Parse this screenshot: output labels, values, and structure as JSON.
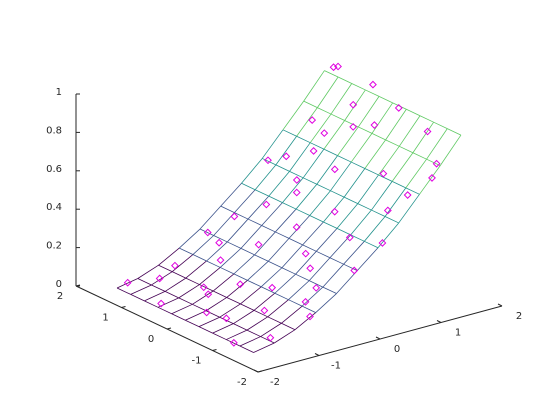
{
  "chart_data": {
    "type": "surface3d",
    "xlim": [
      -2,
      2
    ],
    "ylim": [
      -2,
      2
    ],
    "zlim": [
      0,
      1
    ],
    "xticks": [
      -2,
      -1,
      0,
      1,
      2
    ],
    "yticks": [
      -2,
      -1,
      0,
      1,
      2
    ],
    "zticks": [
      0,
      0.2,
      0.4,
      0.6,
      0.8,
      1
    ],
    "colormap": [
      "#440154",
      "#3b528b",
      "#21918c",
      "#5ec962",
      "#fde725"
    ],
    "surface": {
      "x": [
        -1.7,
        -1.36,
        -1.02,
        -0.68,
        -0.34,
        0,
        0.34,
        0.68,
        1.02,
        1.36,
        1.7
      ],
      "y": [
        -1.5,
        -1.2,
        -0.9,
        -0.6,
        -0.3,
        0,
        0.3,
        0.6,
        0.9,
        1.2,
        1.5
      ],
      "z": [
        [
          0.02,
          0.04,
          0.08,
          0.14,
          0.21,
          0.3,
          0.39,
          0.49,
          0.61,
          0.73,
          0.86
        ],
        [
          0.02,
          0.04,
          0.08,
          0.14,
          0.21,
          0.3,
          0.39,
          0.49,
          0.61,
          0.73,
          0.86
        ],
        [
          0.02,
          0.04,
          0.08,
          0.14,
          0.21,
          0.3,
          0.39,
          0.49,
          0.61,
          0.73,
          0.86
        ],
        [
          0.02,
          0.04,
          0.08,
          0.14,
          0.21,
          0.3,
          0.39,
          0.49,
          0.61,
          0.73,
          0.86
        ],
        [
          0.02,
          0.04,
          0.08,
          0.14,
          0.21,
          0.3,
          0.39,
          0.49,
          0.61,
          0.73,
          0.86
        ],
        [
          0.02,
          0.04,
          0.08,
          0.14,
          0.21,
          0.3,
          0.39,
          0.49,
          0.61,
          0.73,
          0.86
        ],
        [
          0.02,
          0.04,
          0.08,
          0.14,
          0.21,
          0.3,
          0.39,
          0.49,
          0.61,
          0.73,
          0.86
        ],
        [
          0.02,
          0.04,
          0.08,
          0.14,
          0.21,
          0.3,
          0.39,
          0.49,
          0.61,
          0.73,
          0.86
        ],
        [
          0.02,
          0.04,
          0.08,
          0.14,
          0.21,
          0.3,
          0.39,
          0.49,
          0.61,
          0.73,
          0.86
        ],
        [
          0.02,
          0.04,
          0.08,
          0.14,
          0.21,
          0.3,
          0.39,
          0.49,
          0.61,
          0.73,
          0.86
        ],
        [
          0.02,
          0.04,
          0.08,
          0.14,
          0.21,
          0.3,
          0.39,
          0.49,
          0.61,
          0.73,
          0.86
        ]
      ]
    },
    "points": {
      "color": "#e000e0",
      "x": [
        -1.6,
        -1.5,
        -1.4,
        -1.3,
        -1.2,
        -1.1,
        -1.0,
        -0.9,
        -0.8,
        -0.7,
        -0.6,
        -0.5,
        -0.4,
        -0.3,
        -0.2,
        -0.1,
        0.0,
        0.1,
        0.2,
        0.3,
        0.4,
        0.5,
        0.6,
        0.7,
        0.8,
        0.9,
        1.0,
        1.1,
        1.2,
        1.3,
        1.4,
        1.5,
        1.6,
        1.7,
        1.65,
        1.55,
        -1.65,
        -0.95,
        0.05,
        0.85,
        1.35,
        -0.25,
        0.45,
        1.05,
        1.45,
        1.6,
        -1.35,
        -0.55,
        0.65,
        1.25
      ],
      "y": [
        1.4,
        0.8,
        -0.5,
        1.1,
        -1.2,
        0.3,
        -0.8,
        1.3,
        0.0,
        -1.4,
        0.7,
        -0.3,
        1.0,
        -1.0,
        0.4,
        -0.6,
        1.2,
        -1.3,
        0.1,
        0.9,
        -0.8,
        0.5,
        -0.2,
        1.4,
        -1.1,
        0.2,
        0.8,
        -0.6,
        1.1,
        -1.4,
        0.0,
        0.6,
        -0.9,
        1.3,
        -0.2,
        1.0,
        -1.0,
        0.6,
        -0.3,
        1.2,
        0.4,
        1.45,
        -1.45,
        -1.2,
        -1.3,
        0.3,
        0.0,
        -1.1,
        0.7,
        0.9
      ],
      "z": [
        0.05,
        0.0,
        0.06,
        0.08,
        0.02,
        0.07,
        0.1,
        0.09,
        0.13,
        0.11,
        0.16,
        0.12,
        0.2,
        0.18,
        0.24,
        0.22,
        0.28,
        0.27,
        0.33,
        0.35,
        0.36,
        0.44,
        0.41,
        0.49,
        0.5,
        0.56,
        0.58,
        0.61,
        0.69,
        0.66,
        0.77,
        0.8,
        0.82,
        0.9,
        0.86,
        0.95,
        0.01,
        0.06,
        0.25,
        0.52,
        0.72,
        0.19,
        0.4,
        0.57,
        0.71,
        0.93,
        0.03,
        0.14,
        0.47,
        0.64
      ]
    }
  }
}
